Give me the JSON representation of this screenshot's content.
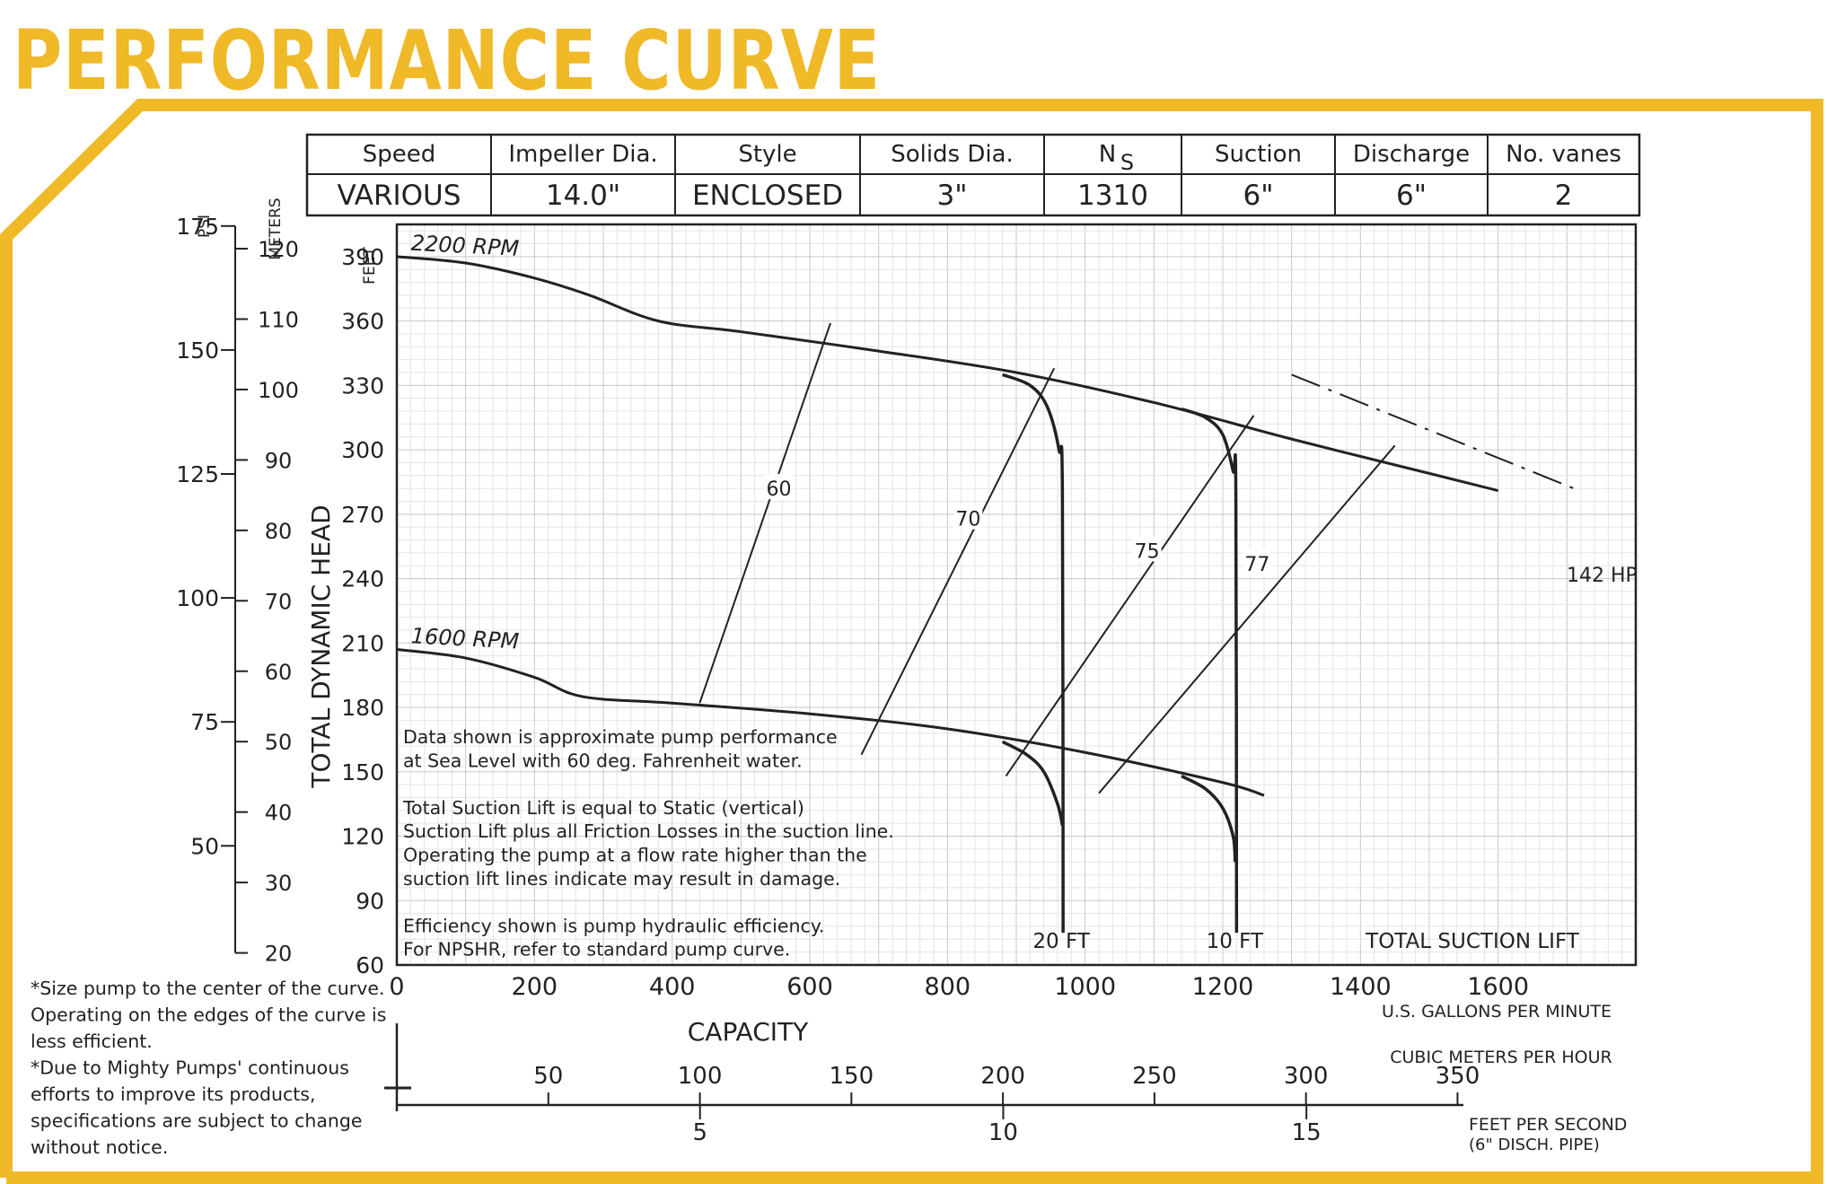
{
  "page_title": "PERFORMANCE CURVE",
  "colors": {
    "frame": "#F0B928",
    "title": "#F0B928",
    "line": "#222222",
    "grid": "#d4d4d4"
  },
  "spec_table": {
    "headers": [
      "Speed",
      "Impeller Dia.",
      "Style",
      "Solids Dia.",
      "N",
      "Suction",
      "Discharge",
      "No. vanes"
    ],
    "ns_subscript": "S",
    "values": [
      "VARIOUS",
      "14.0\"",
      "ENCLOSED",
      "3\"",
      "1310",
      "6\"",
      "6\"",
      "2"
    ]
  },
  "notes_left": [
    "*Size pump to the center of the curve.",
    "Operating on the edges of the curve is",
    "less efficient.",
    "*Due to Mighty Pumps' continuous",
    "efforts to improve its products,",
    "specifications are subject to change",
    "without notice."
  ],
  "notes_plot": [
    "Data shown is approximate pump performance",
    "at Sea Level with 60 deg. Fahrenheit water.",
    "",
    "Total Suction Lift is equal to Static (vertical)",
    "Suction Lift plus all Friction Losses in the suction line.",
    "Operating the pump at a flow rate higher than the",
    "suction lift lines indicate may result in damage.",
    "",
    "Efficiency shown is pump hydraulic efficiency.",
    "For NPSHR, refer to standard pump curve."
  ],
  "chart_data": {
    "type": "line",
    "xlabel": "CAPACITY",
    "x_unit": "U.S. GALLONS PER MINUTE",
    "ylabel": "TOTAL DYNAMIC HEAD",
    "y_unit": "FEET",
    "xlim": [
      0,
      1800
    ],
    "ylim": [
      60,
      405
    ],
    "x_ticks": [
      0,
      200,
      400,
      600,
      800,
      1000,
      1200,
      1400,
      1600
    ],
    "y_ticks": [
      60,
      90,
      120,
      150,
      180,
      210,
      240,
      270,
      300,
      330,
      360,
      390
    ],
    "grid": true,
    "secondary_axes": {
      "psi": {
        "label": "PSI",
        "ticks": [
          50,
          75,
          100,
          125,
          150,
          175
        ]
      },
      "meters": {
        "label": "METERS",
        "ticks": [
          20,
          30,
          40,
          50,
          60,
          70,
          80,
          90,
          100,
          110,
          120
        ]
      },
      "m3h": {
        "label": "CUBIC METERS PER HOUR",
        "ticks": [
          50,
          100,
          150,
          200,
          250,
          300,
          350
        ]
      },
      "fps": {
        "label": "FEET PER SECOND",
        "sublabel": "(6\" DISCH. PIPE)",
        "ticks": [
          5,
          10,
          15
        ]
      }
    },
    "series": [
      {
        "name": "2200 RPM",
        "x": [
          0,
          100,
          200,
          280,
          380,
          500,
          700,
          900,
          1100,
          1300,
          1500,
          1600
        ],
        "y": [
          390,
          387,
          380,
          372,
          360,
          355,
          346,
          336,
          322,
          305,
          289,
          281
        ]
      },
      {
        "name": "1600 RPM",
        "x": [
          0,
          100,
          200,
          270,
          400,
          600,
          800,
          1000,
          1200,
          1260
        ],
        "y": [
          207,
          203,
          194,
          185,
          182,
          177,
          170,
          159,
          145,
          139
        ]
      }
    ],
    "suction_lift_curves": [
      {
        "name": "20 FT",
        "upper": [
          [
            880,
            335
          ],
          [
            920,
            330
          ],
          [
            945,
            320
          ],
          [
            962,
            300
          ],
          [
            967,
            280
          ],
          [
            968,
            75
          ]
        ],
        "lower": [
          [
            880,
            164
          ],
          [
            915,
            158
          ],
          [
            940,
            150
          ],
          [
            960,
            135
          ],
          [
            967,
            125
          ]
        ]
      },
      {
        "name": "10 FT",
        "upper": [
          [
            1140,
            319
          ],
          [
            1175,
            315
          ],
          [
            1200,
            307
          ],
          [
            1215,
            290
          ],
          [
            1219,
            280
          ],
          [
            1220,
            75
          ]
        ],
        "lower": [
          [
            1140,
            148
          ],
          [
            1175,
            142
          ],
          [
            1200,
            133
          ],
          [
            1215,
            120
          ],
          [
            1218,
            108
          ]
        ]
      }
    ],
    "suction_lift_label": "TOTAL SUCTION LIFT",
    "efficiency_lines": [
      {
        "name": "60",
        "from": [
          440,
          182
        ],
        "to": [
          630,
          359
        ]
      },
      {
        "name": "70",
        "from": [
          675,
          158
        ],
        "to": [
          955,
          338
        ]
      },
      {
        "name": "75",
        "from": [
          885,
          148
        ],
        "to": [
          1245,
          316
        ]
      },
      {
        "name": "77",
        "from": [
          1020,
          140
        ],
        "to": [
          1450,
          302
        ]
      }
    ],
    "power_line": {
      "name": "142 HP",
      "from": [
        1300,
        335
      ],
      "to": [
        1710,
        282
      ]
    }
  }
}
